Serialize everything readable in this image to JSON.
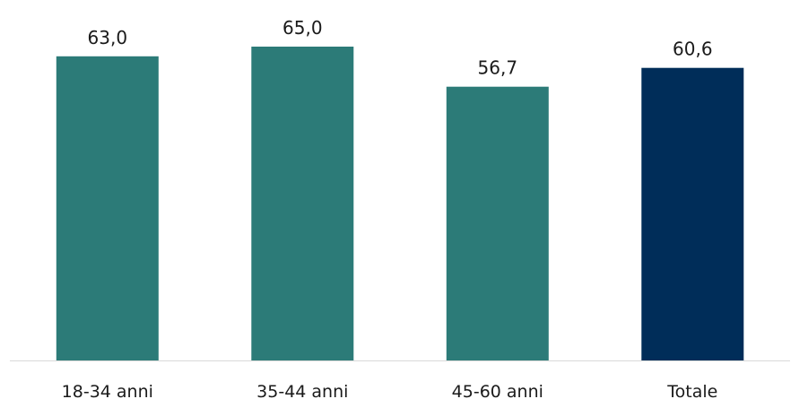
{
  "chart_data": {
    "type": "bar",
    "categories": [
      "18-34 anni",
      "35-44 anni",
      "45-60 anni",
      "Totale"
    ],
    "values": [
      63.0,
      65.0,
      56.7,
      60.6
    ],
    "value_labels": [
      "63,0",
      "65,0",
      "56,7",
      "60,6"
    ],
    "title": "",
    "xlabel": "",
    "ylabel": "",
    "ylim": [
      0,
      65
    ],
    "grid": false,
    "legend": "none",
    "colors": {
      "age_group": "#2c7b78",
      "total": "#002d59",
      "axis": "#d9d9d9"
    }
  }
}
